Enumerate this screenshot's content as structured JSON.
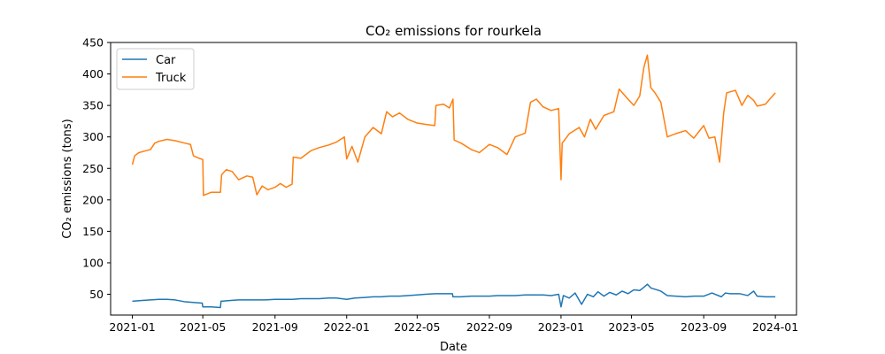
{
  "chart_data": {
    "type": "line",
    "title": "CO₂ emissions for rourkela",
    "xlabel": "Date",
    "ylabel": "CO₂ emissions (tons)",
    "xlim": [
      "2020-11-25",
      "2024-02-06"
    ],
    "ylim": [
      17,
      450
    ],
    "x_ticks": [
      "2021-01",
      "2021-05",
      "2021-09",
      "2022-01",
      "2022-05",
      "2022-09",
      "2023-01",
      "2023-05",
      "2023-09",
      "2024-01"
    ],
    "y_ticks": [
      50,
      100,
      150,
      200,
      250,
      300,
      350,
      400,
      450
    ],
    "grid": false,
    "legend": "top-left",
    "series": [
      {
        "name": "Car",
        "color": "#1f77b4",
        "points": [
          [
            "2021-01-01",
            39
          ],
          [
            "2021-01-15",
            40
          ],
          [
            "2021-02-01",
            41
          ],
          [
            "2021-02-15",
            42
          ],
          [
            "2021-03-01",
            42
          ],
          [
            "2021-03-15",
            41
          ],
          [
            "2021-04-01",
            38
          ],
          [
            "2021-04-15",
            37
          ],
          [
            "2021-04-30",
            36
          ],
          [
            "2021-05-01",
            30
          ],
          [
            "2021-05-15",
            30
          ],
          [
            "2021-05-31",
            29
          ],
          [
            "2021-06-01",
            39
          ],
          [
            "2021-06-15",
            40
          ],
          [
            "2021-07-01",
            41
          ],
          [
            "2021-07-15",
            41
          ],
          [
            "2021-08-01",
            41
          ],
          [
            "2021-08-15",
            41
          ],
          [
            "2021-09-01",
            42
          ],
          [
            "2021-09-15",
            42
          ],
          [
            "2021-10-01",
            42
          ],
          [
            "2021-10-15",
            43
          ],
          [
            "2021-11-01",
            43
          ],
          [
            "2021-11-15",
            43
          ],
          [
            "2021-12-01",
            44
          ],
          [
            "2021-12-15",
            44
          ],
          [
            "2022-01-01",
            42
          ],
          [
            "2022-01-15",
            44
          ],
          [
            "2022-02-01",
            45
          ],
          [
            "2022-02-15",
            46
          ],
          [
            "2022-03-01",
            46
          ],
          [
            "2022-03-15",
            47
          ],
          [
            "2022-04-01",
            47
          ],
          [
            "2022-04-15",
            48
          ],
          [
            "2022-05-01",
            49
          ],
          [
            "2022-05-15",
            50
          ],
          [
            "2022-06-01",
            51
          ],
          [
            "2022-06-15",
            51
          ],
          [
            "2022-06-30",
            51
          ],
          [
            "2022-07-01",
            46
          ],
          [
            "2022-07-15",
            46
          ],
          [
            "2022-08-01",
            47
          ],
          [
            "2022-08-15",
            47
          ],
          [
            "2022-09-01",
            47
          ],
          [
            "2022-09-15",
            48
          ],
          [
            "2022-10-01",
            48
          ],
          [
            "2022-10-15",
            48
          ],
          [
            "2022-11-01",
            49
          ],
          [
            "2022-11-15",
            49
          ],
          [
            "2022-12-01",
            49
          ],
          [
            "2022-12-15",
            48
          ],
          [
            "2022-12-28",
            50
          ],
          [
            "2023-01-01",
            30
          ],
          [
            "2023-01-05",
            48
          ],
          [
            "2023-01-15",
            44
          ],
          [
            "2023-01-25",
            52
          ],
          [
            "2023-02-05",
            34
          ],
          [
            "2023-02-15",
            50
          ],
          [
            "2023-02-25",
            46
          ],
          [
            "2023-03-05",
            54
          ],
          [
            "2023-03-15",
            47
          ],
          [
            "2023-03-25",
            53
          ],
          [
            "2023-04-05",
            49
          ],
          [
            "2023-04-15",
            55
          ],
          [
            "2023-04-25",
            51
          ],
          [
            "2023-05-05",
            57
          ],
          [
            "2023-05-15",
            56
          ],
          [
            "2023-05-22",
            61
          ],
          [
            "2023-05-28",
            66
          ],
          [
            "2023-06-03",
            60
          ],
          [
            "2023-06-10",
            58
          ],
          [
            "2023-06-20",
            55
          ],
          [
            "2023-07-01",
            48
          ],
          [
            "2023-07-15",
            47
          ],
          [
            "2023-08-01",
            46
          ],
          [
            "2023-08-15",
            47
          ],
          [
            "2023-09-01",
            47
          ],
          [
            "2023-09-15",
            52
          ],
          [
            "2023-10-01",
            46
          ],
          [
            "2023-10-08",
            52
          ],
          [
            "2023-10-15",
            51
          ],
          [
            "2023-11-01",
            51
          ],
          [
            "2023-11-15",
            48
          ],
          [
            "2023-11-25",
            55
          ],
          [
            "2023-12-01",
            47
          ],
          [
            "2023-12-15",
            46
          ],
          [
            "2024-01-01",
            46
          ]
        ]
      },
      {
        "name": "Truck",
        "color": "#ff7f0e",
        "points": [
          [
            "2021-01-01",
            256
          ],
          [
            "2021-01-05",
            270
          ],
          [
            "2021-01-12",
            275
          ],
          [
            "2021-01-20",
            277
          ],
          [
            "2021-02-01",
            280
          ],
          [
            "2021-02-08",
            290
          ],
          [
            "2021-02-15",
            293
          ],
          [
            "2021-03-01",
            296
          ],
          [
            "2021-03-15",
            294
          ],
          [
            "2021-04-01",
            290
          ],
          [
            "2021-04-10",
            288
          ],
          [
            "2021-04-15",
            270
          ],
          [
            "2021-04-25",
            266
          ],
          [
            "2021-05-01",
            264
          ],
          [
            "2021-05-02",
            207
          ],
          [
            "2021-05-15",
            212
          ],
          [
            "2021-05-31",
            212
          ],
          [
            "2021-06-02",
            240
          ],
          [
            "2021-06-10",
            248
          ],
          [
            "2021-06-20",
            245
          ],
          [
            "2021-07-01",
            232
          ],
          [
            "2021-07-15",
            238
          ],
          [
            "2021-07-25",
            236
          ],
          [
            "2021-08-01",
            208
          ],
          [
            "2021-08-10",
            222
          ],
          [
            "2021-08-20",
            216
          ],
          [
            "2021-09-01",
            220
          ],
          [
            "2021-09-10",
            226
          ],
          [
            "2021-09-20",
            220
          ],
          [
            "2021-09-30",
            225
          ],
          [
            "2021-10-02",
            268
          ],
          [
            "2021-10-15",
            266
          ],
          [
            "2021-11-01",
            278
          ],
          [
            "2021-11-15",
            283
          ],
          [
            "2021-12-01",
            287
          ],
          [
            "2021-12-15",
            292
          ],
          [
            "2021-12-28",
            300
          ],
          [
            "2022-01-01",
            265
          ],
          [
            "2022-01-10",
            285
          ],
          [
            "2022-01-20",
            260
          ],
          [
            "2022-02-01",
            300
          ],
          [
            "2022-02-15",
            315
          ],
          [
            "2022-03-01",
            305
          ],
          [
            "2022-03-10",
            340
          ],
          [
            "2022-03-20",
            332
          ],
          [
            "2022-04-01",
            338
          ],
          [
            "2022-04-15",
            328
          ],
          [
            "2022-05-01",
            322
          ],
          [
            "2022-05-15",
            320
          ],
          [
            "2022-05-31",
            318
          ],
          [
            "2022-06-02",
            350
          ],
          [
            "2022-06-15",
            352
          ],
          [
            "2022-06-25",
            346
          ],
          [
            "2022-07-01",
            360
          ],
          [
            "2022-07-03",
            295
          ],
          [
            "2022-07-15",
            290
          ],
          [
            "2022-08-01",
            280
          ],
          [
            "2022-08-15",
            275
          ],
          [
            "2022-09-01",
            288
          ],
          [
            "2022-09-15",
            283
          ],
          [
            "2022-10-01",
            272
          ],
          [
            "2022-10-15",
            300
          ],
          [
            "2022-11-01",
            306
          ],
          [
            "2022-11-10",
            355
          ],
          [
            "2022-11-20",
            360
          ],
          [
            "2022-12-01",
            348
          ],
          [
            "2022-12-15",
            342
          ],
          [
            "2022-12-28",
            345
          ],
          [
            "2023-01-01",
            232
          ],
          [
            "2023-01-03",
            290
          ],
          [
            "2023-01-15",
            305
          ],
          [
            "2023-02-01",
            315
          ],
          [
            "2023-02-10",
            300
          ],
          [
            "2023-02-20",
            328
          ],
          [
            "2023-03-01",
            312
          ],
          [
            "2023-03-15",
            334
          ],
          [
            "2023-04-01",
            340
          ],
          [
            "2023-04-10",
            376
          ],
          [
            "2023-04-25",
            360
          ],
          [
            "2023-05-05",
            350
          ],
          [
            "2023-05-15",
            365
          ],
          [
            "2023-05-22",
            410
          ],
          [
            "2023-05-28",
            430
          ],
          [
            "2023-06-03",
            378
          ],
          [
            "2023-06-10",
            370
          ],
          [
            "2023-06-20",
            355
          ],
          [
            "2023-07-01",
            300
          ],
          [
            "2023-07-15",
            305
          ],
          [
            "2023-08-01",
            310
          ],
          [
            "2023-08-15",
            298
          ],
          [
            "2023-09-01",
            318
          ],
          [
            "2023-09-10",
            298
          ],
          [
            "2023-09-20",
            300
          ],
          [
            "2023-09-28",
            260
          ],
          [
            "2023-10-05",
            338
          ],
          [
            "2023-10-10",
            370
          ],
          [
            "2023-10-25",
            374
          ],
          [
            "2023-11-05",
            350
          ],
          [
            "2023-11-15",
            366
          ],
          [
            "2023-11-25",
            358
          ],
          [
            "2023-12-01",
            349
          ],
          [
            "2023-12-15",
            352
          ],
          [
            "2024-01-01",
            370
          ]
        ]
      }
    ]
  }
}
